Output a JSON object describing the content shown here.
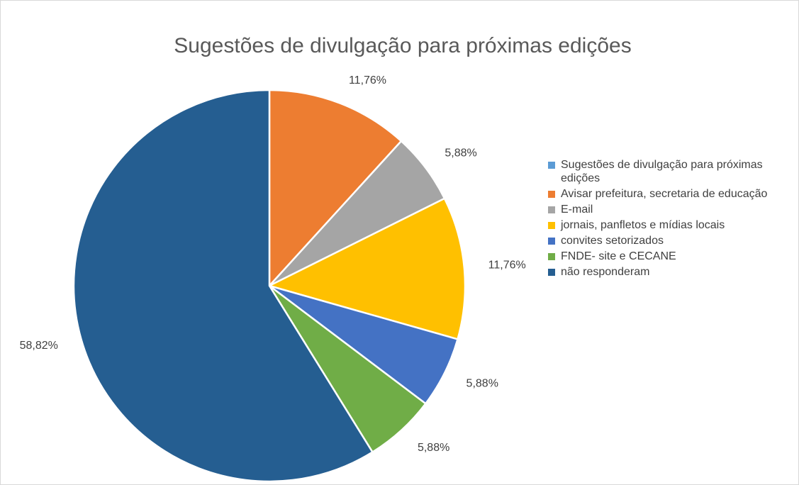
{
  "chart_data": {
    "type": "pie",
    "title": "Sugestões de divulgação para próximas edições",
    "categories": [
      "Sugestões de divulgação para próximas edições",
      "Avisar prefeitura, secretaria de educação",
      "E-mail",
      "jornais, panfletos e mídias locais",
      "convites setorizados",
      "FNDE- site e CECANE",
      "não responderam"
    ],
    "values": [
      0,
      11.76,
      5.88,
      11.76,
      5.88,
      5.88,
      58.82
    ],
    "value_labels": [
      null,
      "11,76%",
      "5,88%",
      "11,76%",
      "5,88%",
      "5,88%",
      "58,82%"
    ],
    "colors": [
      "#5b9bd5",
      "#ed7d31",
      "#a5a5a5",
      "#ffc000",
      "#4472c4",
      "#70ad47",
      "#255e91"
    ],
    "legend": "right"
  }
}
